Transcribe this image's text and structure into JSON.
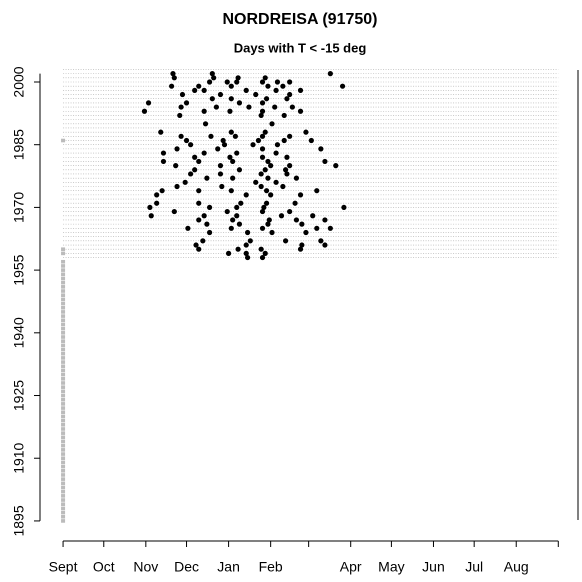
{
  "chart_data": {
    "type": "scatter",
    "title": "NORDREISA (91750)",
    "subtitle": "Days with T < -15 deg",
    "xlim": [
      -17,
      381
    ],
    "ylim": [
      1890.2,
      2005.5
    ],
    "xticks": [
      {
        "value": 0,
        "label": "Sept"
      },
      {
        "value": 30,
        "label": "Oct"
      },
      {
        "value": 61,
        "label": "Nov"
      },
      {
        "value": 91,
        "label": "Dec"
      },
      {
        "value": 122,
        "label": "Jan"
      },
      {
        "value": 153,
        "label": "Feb"
      },
      {
        "value": 181,
        "label": null
      },
      {
        "value": 212,
        "label": "Apr"
      },
      {
        "value": 242,
        "label": "May"
      },
      {
        "value": 273,
        "label": "Jun"
      },
      {
        "value": 303,
        "label": "Jul"
      },
      {
        "value": 334,
        "label": "Aug"
      },
      {
        "value": 365,
        "label": null
      }
    ],
    "yticks": [
      1895,
      1910,
      1925,
      1940,
      1955,
      1970,
      1985,
      2000
    ],
    "hlines": [
      1958,
      1959,
      1960,
      1961,
      1962,
      1963,
      1964,
      1965,
      1966,
      1967,
      1968,
      1969,
      1970,
      1971,
      1972,
      1973,
      1974,
      1975,
      1976,
      1977,
      1978,
      1979,
      1980,
      1981,
      1982,
      1983,
      1984,
      1985,
      1986,
      1987,
      1988,
      1989,
      1990,
      1991,
      1992,
      1993,
      1994,
      1995,
      1996,
      1997,
      1998,
      1999,
      2000,
      2001,
      2002,
      2003
    ],
    "series": [
      {
        "color": "#000000",
        "x": [
          81,
          110,
          197,
          82,
          111,
          129,
          149,
          108,
          121,
          128,
          147,
          158,
          167,
          80,
          100,
          124,
          151,
          162,
          206,
          97,
          104,
          135,
          157,
          175,
          88,
          116,
          142,
          167,
          110,
          124,
          150,
          165,
          63,
          91,
          130,
          147,
          87,
          113,
          137,
          156,
          169,
          60,
          104,
          123,
          147,
          175,
          86,
          146,
          163,
          105,
          154,
          72,
          124,
          149,
          179,
          87,
          109,
          127,
          147,
          167,
          91,
          118,
          144,
          163,
          183,
          94,
          119,
          140,
          158,
          84,
          114,
          147,
          190,
          74,
          104,
          128,
          157,
          97,
          123,
          147,
          165,
          74,
          100,
          125,
          151,
          193,
          83,
          116,
          153,
          167,
          201,
          97,
          130,
          149,
          164,
          94,
          116,
          146,
          165,
          106,
          125,
          151,
          172,
          90,
          142,
          157,
          84,
          117,
          146,
          162,
          73,
          100,
          124,
          150,
          187,
          69,
          135,
          153,
          175,
          69,
          100,
          131,
          150,
          171,
          64,
          108,
          128,
          148,
          207,
          82,
          121,
          147,
          167,
          65,
          104,
          128,
          161,
          184,
          100,
          125,
          152,
          172,
          193,
          106,
          130,
          151,
          176,
          92,
          124,
          147,
          187,
          197,
          108,
          136,
          154,
          179,
          103,
          138,
          164,
          190,
          98,
          135,
          176,
          193,
          100,
          129,
          146,
          175,
          122,
          135,
          149,
          136,
          147
        ],
        "values": [
          2002,
          2002,
          2002,
          2001,
          2001,
          2001,
          2001,
          2000,
          2000,
          2000,
          2000,
          2000,
          2000,
          1999,
          1999,
          1999,
          1999,
          1999,
          1999,
          1998,
          1998,
          1998,
          1998,
          1998,
          1997,
          1997,
          1997,
          1997,
          1996,
          1996,
          1996,
          1996,
          1995,
          1995,
          1995,
          1995,
          1994,
          1994,
          1994,
          1994,
          1994,
          1993,
          1993,
          1993,
          1993,
          1993,
          1992,
          1992,
          1992,
          1990,
          1990,
          1988,
          1988,
          1988,
          1988,
          1987,
          1987,
          1987,
          1987,
          1987,
          1986,
          1986,
          1986,
          1986,
          1986,
          1985,
          1985,
          1985,
          1985,
          1984,
          1984,
          1984,
          1984,
          1983,
          1983,
          1983,
          1983,
          1982,
          1982,
          1982,
          1982,
          1981,
          1981,
          1981,
          1981,
          1981,
          1980,
          1980,
          1980,
          1980,
          1980,
          1979,
          1979,
          1979,
          1979,
          1978,
          1978,
          1978,
          1978,
          1977,
          1977,
          1977,
          1977,
          1976,
          1976,
          1976,
          1975,
          1975,
          1975,
          1975,
          1974,
          1974,
          1974,
          1974,
          1974,
          1973,
          1973,
          1973,
          1973,
          1971,
          1971,
          1971,
          1971,
          1971,
          1970,
          1970,
          1970,
          1970,
          1970,
          1969,
          1969,
          1969,
          1969,
          1968,
          1968,
          1968,
          1968,
          1968,
          1967,
          1967,
          1967,
          1967,
          1967,
          1966,
          1966,
          1966,
          1966,
          1965,
          1965,
          1965,
          1965,
          1965,
          1964,
          1964,
          1964,
          1964,
          1962,
          1962,
          1962,
          1962,
          1961,
          1961,
          1961,
          1961,
          1960,
          1960,
          1960,
          1960,
          1959,
          1959,
          1959,
          1958,
          1958
        ]
      },
      {
        "color": "#bbbbbb",
        "x": [
          0,
          0,
          0,
          0,
          0,
          0,
          0,
          0,
          0,
          0,
          0,
          0,
          0,
          0,
          0,
          0,
          0,
          0,
          0,
          0,
          0,
          0,
          0,
          0,
          0,
          0,
          0,
          0,
          0,
          0,
          0,
          0,
          0,
          0,
          0,
          0,
          0,
          0,
          0,
          0,
          0,
          0,
          0,
          0,
          0,
          0,
          0,
          0,
          0,
          0,
          0,
          0,
          0,
          0,
          0,
          0,
          0,
          0,
          0,
          0,
          0,
          0,
          0,
          0,
          0,
          0
        ],
        "values": [
          1895,
          1896,
          1897,
          1898,
          1899,
          1900,
          1901,
          1902,
          1903,
          1904,
          1905,
          1906,
          1907,
          1908,
          1909,
          1910,
          1911,
          1912,
          1913,
          1914,
          1915,
          1916,
          1917,
          1918,
          1919,
          1920,
          1921,
          1922,
          1923,
          1924,
          1925,
          1926,
          1927,
          1928,
          1929,
          1930,
          1931,
          1932,
          1933,
          1934,
          1935,
          1936,
          1937,
          1938,
          1939,
          1940,
          1941,
          1942,
          1943,
          1944,
          1945,
          1946,
          1947,
          1948,
          1949,
          1950,
          1951,
          1952,
          1953,
          1954,
          1955,
          1956,
          1957,
          1959,
          1960,
          1986
        ]
      }
    ]
  }
}
